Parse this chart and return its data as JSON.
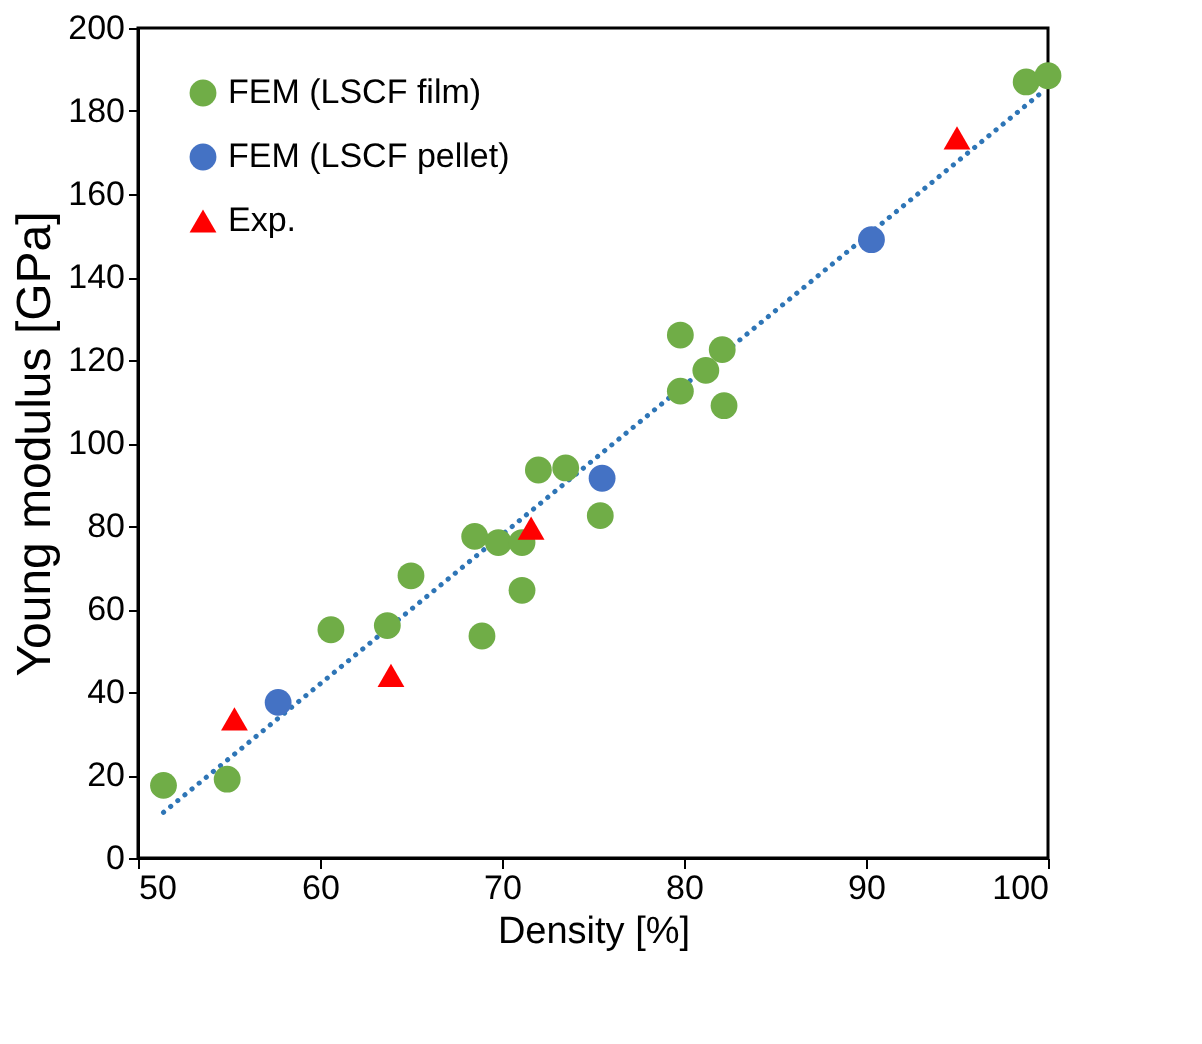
{
  "chart_data": {
    "type": "scatter",
    "xlabel": "Density [%]",
    "ylabel": "Young modulus [GPa]",
    "xlim": [
      50,
      100
    ],
    "xticks": [
      50,
      60,
      70,
      80,
      90,
      100
    ],
    "ylim": [
      0,
      200
    ],
    "yticks": [
      0,
      20,
      40,
      60,
      80,
      100,
      120,
      140,
      160,
      180,
      200
    ],
    "grid": false,
    "legend": "top left",
    "series": [
      {
        "name": "FEM (LSCF film)",
        "color": "#70ad47",
        "marker": "circle",
        "x": [
          51.4,
          54.9,
          60.6,
          63.7,
          65,
          68.5,
          68.9,
          69.8,
          71.1,
          71.1,
          72,
          73.5,
          75.4,
          79.8,
          79.8,
          81.2,
          82.1,
          82.2,
          98.8,
          100
        ],
        "values": [
          17.5,
          19,
          55,
          56,
          68,
          77.5,
          53.5,
          76,
          76,
          64.5,
          93.5,
          94,
          82.5,
          126,
          112.5,
          117.5,
          122.5,
          109,
          187,
          188.5
        ]
      },
      {
        "name": "FEM (LSCF pellet)",
        "color": "#4472c4",
        "marker": "circle",
        "x": [
          57.7,
          75.5,
          90.3
        ],
        "values": [
          37.5,
          91.5,
          149
        ]
      },
      {
        "name": "Exp.",
        "color": "#ff0000",
        "marker": "triangle",
        "x": [
          55.3,
          63.9,
          71.6,
          95
        ],
        "values": [
          33.5,
          44,
          79.5,
          173.5
        ]
      },
      {
        "type": "line",
        "color": "#2e75b6",
        "line_style": "dotted",
        "x": [
          51.4,
          99.8
        ],
        "values": [
          11,
          185
        ]
      }
    ]
  }
}
